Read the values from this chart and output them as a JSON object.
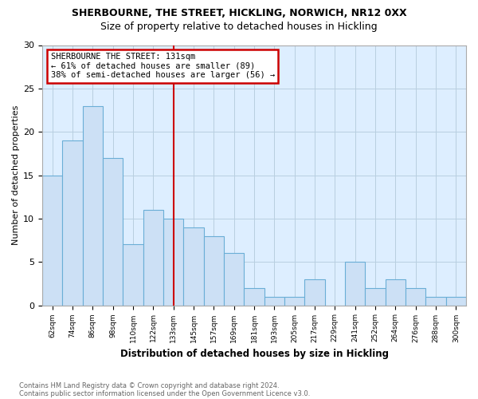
{
  "title1": "SHERBOURNE, THE STREET, HICKLING, NORWICH, NR12 0XX",
  "title2": "Size of property relative to detached houses in Hickling",
  "xlabel": "Distribution of detached houses by size in Hickling",
  "ylabel": "Number of detached properties",
  "footnote1": "Contains HM Land Registry data © Crown copyright and database right 2024.",
  "footnote2": "Contains public sector information licensed under the Open Government Licence v3.0.",
  "categories": [
    "62sqm",
    "74sqm",
    "86sqm",
    "98sqm",
    "110sqm",
    "122sqm",
    "133sqm",
    "145sqm",
    "157sqm",
    "169sqm",
    "181sqm",
    "193sqm",
    "205sqm",
    "217sqm",
    "229sqm",
    "241sqm",
    "252sqm",
    "264sqm",
    "276sqm",
    "288sqm",
    "300sqm"
  ],
  "values": [
    15,
    19,
    23,
    17,
    7,
    11,
    10,
    9,
    8,
    6,
    2,
    1,
    1,
    3,
    0,
    5,
    2,
    3,
    2,
    1,
    1
  ],
  "bar_color": "#cce0f5",
  "bar_edge_color": "#6aaed6",
  "highlight_line_index": 6,
  "annotation_text": "SHERBOURNE THE STREET: 131sqm\n← 61% of detached houses are smaller (89)\n38% of semi-detached houses are larger (56) →",
  "annotation_box_color": "#cc0000",
  "ylim": [
    0,
    30
  ],
  "yticks": [
    0,
    5,
    10,
    15,
    20,
    25,
    30
  ],
  "background_color": "#ffffff",
  "ax_background": "#ddeeff",
  "grid_color": "#b8cfe0",
  "title1_fontsize": 9,
  "title2_fontsize": 9,
  "annot_fontsize": 7.5,
  "xlabel_fontsize": 8.5,
  "ylabel_fontsize": 8
}
